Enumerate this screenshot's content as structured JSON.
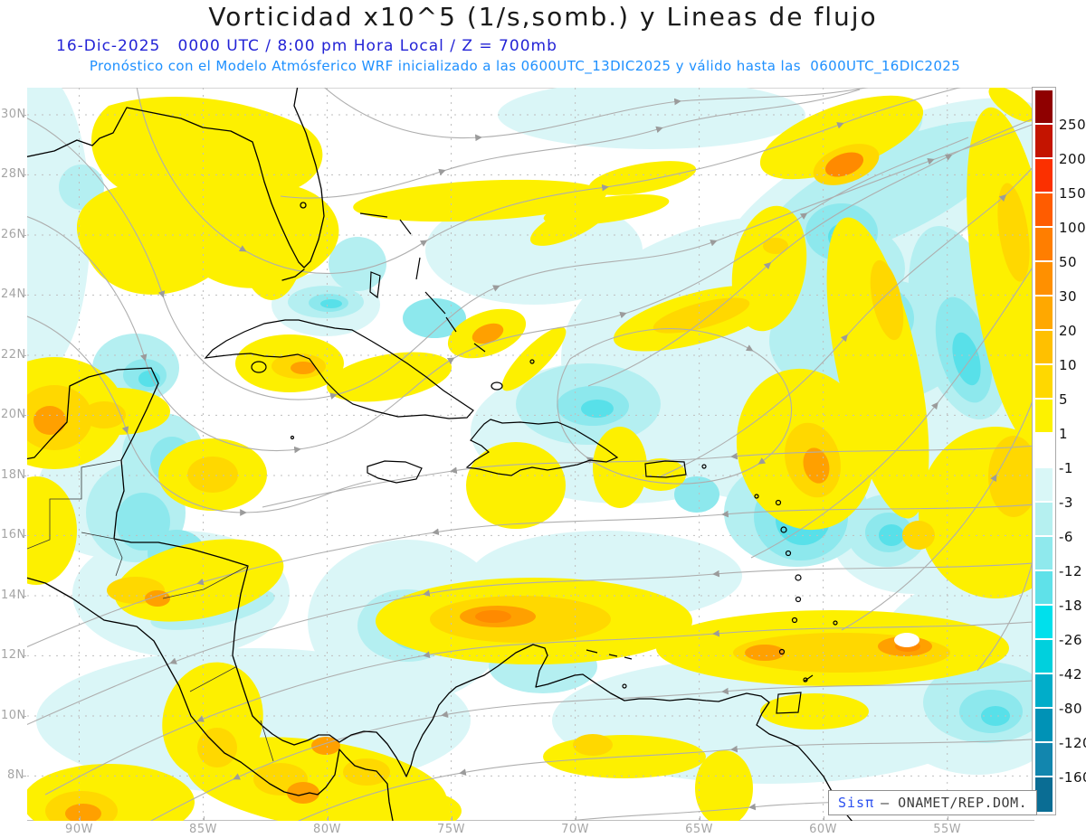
{
  "header": {
    "title": "Vorticidad x10^5 (1/s,somb.) y Lineas de flujo",
    "datetime_line": "16-Dic-2025   0000 UTC / 8:00 pm Hora Local / Z = 700mb",
    "model_line": "Pronóstico con el Modelo Atmósferico WRF inicializado a las 0600UTC_13DIC2025 y válido hasta las  0600UTC_16DIC2025"
  },
  "map": {
    "lat_labels": [
      "30N",
      "28N",
      "26N",
      "24N",
      "22N",
      "20N",
      "18N",
      "16N",
      "14N",
      "12N",
      "10N",
      "8N"
    ],
    "lon_labels": [
      "90W",
      "85W",
      "80W",
      "75W",
      "70W",
      "65W",
      "60W",
      "55W"
    ]
  },
  "colorbar": {
    "tick_labels": [
      "250",
      "200",
      "150",
      "100",
      "50",
      "30",
      "20",
      "10",
      "5",
      "1",
      "-1",
      "-3",
      "-6",
      "-12",
      "-18",
      "-26",
      "-42",
      "-80",
      "-120",
      "-160"
    ],
    "segment_colors": [
      "#8f0000",
      "#c41400",
      "#fb3000",
      "#ff5c00",
      "#ff7e00",
      "#ff9000",
      "#ffa800",
      "#ffc000",
      "#ffd800",
      "#fdf200",
      "#ffffff",
      "#d9f7f7",
      "#b5f0f0",
      "#8fe9ed",
      "#5fe1e9",
      "#00e0ec",
      "#00d0dd",
      "#00adc9",
      "#0092b6",
      "#1286ae",
      "#0a6d94"
    ]
  },
  "watermark": {
    "brand": "Sisπ",
    "text": "– ONAMET/REP.DOM."
  },
  "colors": {
    "title": "#1a1a1a",
    "datetime_line": "#2323d6",
    "model_line": "#1e90ff",
    "axis_labels": "#a6a6a6",
    "streamlines": "#aeaeae",
    "coastlines": "#000000",
    "watermark_brand": "#2b50f0",
    "positive_shading_max": "#ff8a00",
    "negative_shading_max": "#00e2ec"
  }
}
